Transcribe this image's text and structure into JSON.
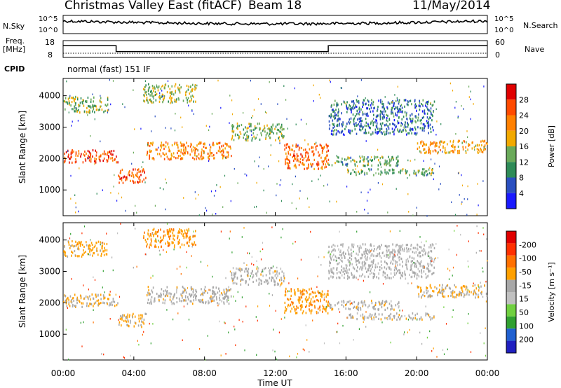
{
  "header": {
    "title": "Christmas Valley East (fitACF)",
    "beam": "Beam 18",
    "date": "11/May/2014"
  },
  "side_labels": {
    "nsky": "N.Sky",
    "nsky_top": "10^5",
    "nsky_bottom": "10^0",
    "nsearch": "N.Search",
    "nsearch_top": "10^5",
    "nsearch_bottom": "10^0",
    "freq": "Freq.",
    "freq_unit": "[MHz]",
    "freq_top": "18",
    "freq_bottom": "8",
    "nave": "Nave",
    "nave_top": "60",
    "nave_bottom": "0",
    "cpid": "CPID",
    "cpid_value": "normal (fast) 151 IF"
  },
  "colors": {
    "power": [
      "#1a1aff",
      "#2a4fc0",
      "#2e8b57",
      "#6aaa5a",
      "#f2a900",
      "#ff8000",
      "#ff4a00",
      "#e00000"
    ],
    "velocity": [
      "#2020c0",
      "#2060d0",
      "#30a030",
      "#70d040",
      "#c0c0c0",
      "#a8a8a8",
      "#ffa000",
      "#ff7000",
      "#ff3000",
      "#e00000"
    ]
  },
  "chart_data": {
    "type": "heatmap",
    "x": {
      "label": "Time UT",
      "range_hours": [
        0,
        24
      ],
      "ticks": [
        "00:00",
        "04:00",
        "08:00",
        "12:00",
        "16:00",
        "20:00",
        "00:00"
      ]
    },
    "y": {
      "label": "Slant Range [km]",
      "range": [
        180,
        4550
      ],
      "ticks": [
        1000,
        2000,
        3000,
        4000
      ]
    },
    "power": {
      "colorbar_label": "Power [dB]",
      "colorbar_ticks": [
        4,
        8,
        12,
        16,
        20,
        24,
        28
      ],
      "range": [
        0,
        32
      ]
    },
    "velocity": {
      "colorbar_label": "Velocity [m s⁻¹]",
      "colorbar_ticks": [
        -200,
        -100,
        -50,
        -15,
        15,
        50,
        100,
        200
      ]
    },
    "echo_bands": [
      {
        "hours": [
          0,
          3.1
        ],
        "range_km": [
          1900,
          2300
        ],
        "power": 26,
        "velocity": -10
      },
      {
        "hours": [
          3.1,
          4.7
        ],
        "range_km": [
          1250,
          1700
        ],
        "power": 25,
        "velocity": -15
      },
      {
        "hours": [
          4.7,
          9.5
        ],
        "range_km": [
          2000,
          2550
        ],
        "power": 22,
        "velocity": 0
      },
      {
        "hours": [
          9.5,
          12.5
        ],
        "range_km": [
          2600,
          3150
        ],
        "power": 14,
        "velocity": 0
      },
      {
        "hours": [
          12.5,
          15
        ],
        "range_km": [
          1700,
          2500
        ],
        "power": 24,
        "velocity": -40
      },
      {
        "hours": [
          15,
          19
        ],
        "range_km": [
          1800,
          2100
        ],
        "power": 12,
        "velocity": 0
      },
      {
        "hours": [
          16,
          21
        ],
        "range_km": [
          1500,
          1700
        ],
        "power": 12,
        "velocity": 0
      },
      {
        "hours": [
          20,
          24
        ],
        "range_km": [
          2200,
          2600
        ],
        "power": 20,
        "velocity": -15
      },
      {
        "hours": [
          0,
          2.5
        ],
        "range_km": [
          3500,
          4000
        ],
        "power": 14,
        "velocity": -30
      },
      {
        "hours": [
          4.5,
          7.5
        ],
        "range_km": [
          3800,
          4400
        ],
        "power": 15,
        "velocity": -40
      },
      {
        "hours": [
          15,
          21
        ],
        "range_km": [
          2800,
          3900
        ],
        "power": 8,
        "velocity": 10
      }
    ],
    "freq_mhz": [
      {
        "hours": [
          0,
          3
        ],
        "value": 15
      },
      {
        "hours": [
          3,
          15
        ],
        "value": 11.5
      },
      {
        "hours": [
          15,
          24
        ],
        "value": 15
      }
    ],
    "nave_level": 15
  }
}
